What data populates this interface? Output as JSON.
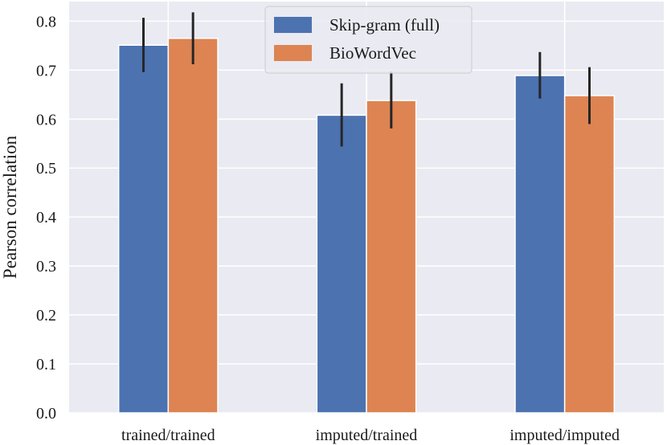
{
  "chart_data": {
    "type": "bar",
    "categories": [
      "trained/trained",
      "imputed/trained",
      "imputed/imputed"
    ],
    "series": [
      {
        "name": "Skip-gram (full)",
        "color": "#4c72b0",
        "values": [
          0.751,
          0.608,
          0.689
        ],
        "error_low": [
          0.696,
          0.544,
          0.642
        ],
        "error_high": [
          0.807,
          0.673,
          0.737
        ]
      },
      {
        "name": "BioWordVec",
        "color": "#dd8452",
        "values": [
          0.765,
          0.638,
          0.648
        ],
        "error_low": [
          0.712,
          0.581,
          0.59
        ],
        "error_high": [
          0.818,
          0.697,
          0.706
        ]
      }
    ],
    "title": "",
    "xlabel": "",
    "ylabel": "Pearson correlation",
    "ylim": [
      0.0,
      0.84
    ],
    "yticks": [
      "0.0",
      "0.1",
      "0.2",
      "0.3",
      "0.4",
      "0.5",
      "0.6",
      "0.7",
      "0.8"
    ],
    "grid": true,
    "legend_position": "top-center",
    "background": "#eaeaf2",
    "grid_color": "#ffffff",
    "errorbar_color": "#262626"
  }
}
